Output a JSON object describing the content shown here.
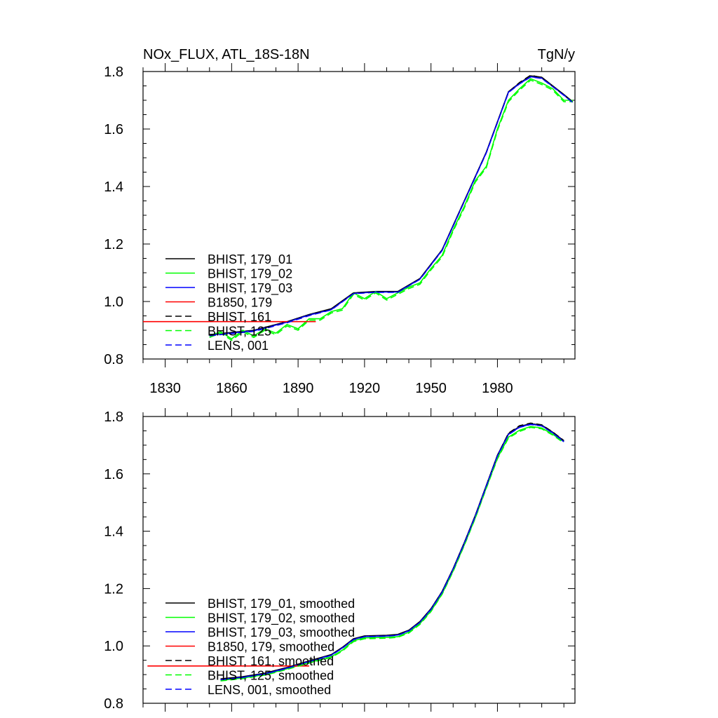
{
  "figure": {
    "title_left": "NOx_FLUX, ATL_18S-18N",
    "title_right": "TgN/y"
  },
  "chart_data": [
    {
      "type": "line",
      "title": "NOx_FLUX, ATL_18S-18N",
      "units": "TgN/y",
      "xlim": [
        1820,
        2015
      ],
      "ylim": [
        0.8,
        1.8
      ],
      "x_ticks": [
        1830,
        1860,
        1890,
        1920,
        1950,
        1980
      ],
      "x_tick_labels": [
        "1830",
        "1860",
        "1890",
        "1920",
        "1950",
        "1980"
      ],
      "y_ticks": [
        0.8,
        1.0,
        1.2,
        1.4,
        1.6,
        1.8
      ],
      "y_tick_labels": [
        "0.8",
        "1.0",
        "1.2",
        "1.4",
        "1.6",
        "1.8"
      ],
      "legend_position": "lower-left",
      "series": [
        {
          "name": "BHIST, 179_01",
          "color": "#000000",
          "dash": "solid",
          "x": [
            1850,
            1870,
            1885,
            1895,
            1905,
            1915,
            1925,
            1935,
            1945,
            1955,
            1965,
            1975,
            1985,
            1990,
            1995,
            2000,
            2005,
            2010,
            2014
          ],
          "y": [
            0.885,
            0.9,
            0.93,
            0.955,
            0.975,
            1.03,
            1.035,
            1.035,
            1.08,
            1.18,
            1.35,
            1.52,
            1.73,
            1.76,
            1.785,
            1.78,
            1.75,
            1.72,
            1.695
          ]
        },
        {
          "name": "BHIST, 179_02",
          "color": "#00ff00",
          "dash": "solid",
          "x": [
            1850,
            1855,
            1860,
            1865,
            1870,
            1875,
            1880,
            1885,
            1890,
            1895,
            1900,
            1905,
            1910,
            1915,
            1920,
            1925,
            1930,
            1935,
            1940,
            1945,
            1950,
            1955,
            1960,
            1965,
            1970,
            1975,
            1980,
            1985,
            1990,
            1995,
            2000,
            2005,
            2010,
            2014
          ],
          "y": [
            0.88,
            0.895,
            0.87,
            0.9,
            0.88,
            0.905,
            0.89,
            0.92,
            0.905,
            0.94,
            0.94,
            0.965,
            0.975,
            1.03,
            1.01,
            1.035,
            1.01,
            1.03,
            1.05,
            1.065,
            1.115,
            1.16,
            1.25,
            1.33,
            1.42,
            1.47,
            1.6,
            1.7,
            1.74,
            1.775,
            1.76,
            1.74,
            1.7,
            1.7
          ]
        },
        {
          "name": "BHIST, 179_03",
          "color": "#0000ff",
          "dash": "solid",
          "x": [
            1850,
            1870,
            1885,
            1895,
            1905,
            1915,
            1925,
            1935,
            1945,
            1955,
            1965,
            1975,
            1985,
            1990,
            1995,
            2000,
            2005,
            2010,
            2014
          ],
          "y": [
            0.883,
            0.898,
            0.928,
            0.953,
            0.972,
            1.028,
            1.033,
            1.033,
            1.078,
            1.178,
            1.348,
            1.518,
            1.728,
            1.758,
            1.782,
            1.777,
            1.748,
            1.718,
            1.693
          ]
        },
        {
          "name": "B1850, 179",
          "color": "#ff0000",
          "dash": "solid",
          "x": [
            1820,
            1898
          ],
          "y": [
            0.93,
            0.93
          ]
        },
        {
          "name": "BHIST, 161",
          "color": "#000000",
          "dash": "dashed",
          "x": [
            1850,
            1870,
            1885,
            1895,
            1905,
            1915,
            1925,
            1935,
            1945,
            1955,
            1965,
            1975,
            1985,
            1990,
            1995,
            2000,
            2005,
            2010,
            2014
          ],
          "y": [
            0.882,
            0.897,
            0.927,
            0.952,
            0.973,
            1.029,
            1.034,
            1.033,
            1.079,
            1.179,
            1.349,
            1.519,
            1.729,
            1.762,
            1.787,
            1.779,
            1.749,
            1.719,
            1.694
          ]
        },
        {
          "name": "BHIST, 125",
          "color": "#00ff00",
          "dash": "dashed",
          "x": [
            1850,
            1855,
            1860,
            1865,
            1870,
            1875,
            1880,
            1885,
            1890,
            1895,
            1900,
            1905,
            1910,
            1915,
            1920,
            1925,
            1930,
            1935,
            1940,
            1945,
            1950,
            1955,
            1960,
            1965,
            1970,
            1975,
            1980,
            1985,
            1990,
            1995,
            2000,
            2005,
            2010,
            2014
          ],
          "y": [
            0.875,
            0.89,
            0.865,
            0.895,
            0.875,
            0.9,
            0.885,
            0.915,
            0.9,
            0.935,
            0.935,
            0.96,
            0.97,
            1.025,
            1.005,
            1.03,
            1.005,
            1.025,
            1.045,
            1.06,
            1.11,
            1.155,
            1.245,
            1.325,
            1.415,
            1.465,
            1.595,
            1.695,
            1.735,
            1.77,
            1.755,
            1.735,
            1.695,
            1.695
          ]
        },
        {
          "name": "LENS, 001",
          "color": "#0000ff",
          "dash": "dashed",
          "x": [
            1850,
            1870,
            1885,
            1895,
            1905,
            1915,
            1925,
            1935,
            1945,
            1955,
            1965,
            1975,
            1985,
            1990,
            1995,
            2000,
            2005,
            2010,
            2014
          ],
          "y": [
            0.881,
            0.896,
            0.926,
            0.951,
            0.971,
            1.027,
            1.032,
            1.032,
            1.077,
            1.177,
            1.347,
            1.517,
            1.727,
            1.757,
            1.781,
            1.776,
            1.747,
            1.717,
            1.692
          ]
        }
      ]
    },
    {
      "type": "line",
      "xlim": [
        1820,
        2015
      ],
      "ylim": [
        0.8,
        1.8
      ],
      "x_ticks": [
        1830,
        1860,
        1890,
        1920,
        1950,
        1980
      ],
      "x_tick_labels": [],
      "y_ticks": [
        0.8,
        1.0,
        1.2,
        1.4,
        1.6,
        1.8
      ],
      "y_tick_labels": [
        "0.8",
        "1.0",
        "1.2",
        "1.4",
        "1.6",
        "1.8"
      ],
      "legend_position": "lower-left",
      "series": [
        {
          "name": "BHIST, 179_01, smoothed",
          "color": "#000000",
          "dash": "solid",
          "x": [
            1855,
            1865,
            1875,
            1885,
            1895,
            1905,
            1910,
            1915,
            1920,
            1930,
            1935,
            1940,
            1945,
            1950,
            1955,
            1960,
            1965,
            1970,
            1975,
            1980,
            1985,
            1990,
            1995,
            2000,
            2005,
            2010
          ],
          "y": [
            0.885,
            0.893,
            0.905,
            0.925,
            0.948,
            0.97,
            0.995,
            1.025,
            1.035,
            1.037,
            1.04,
            1.055,
            1.085,
            1.13,
            1.19,
            1.27,
            1.36,
            1.455,
            1.56,
            1.665,
            1.74,
            1.765,
            1.775,
            1.77,
            1.745,
            1.715
          ]
        },
        {
          "name": "BHIST, 179_02, smoothed",
          "color": "#00ff00",
          "dash": "solid",
          "x": [
            1855,
            1865,
            1875,
            1885,
            1895,
            1905,
            1910,
            1915,
            1920,
            1930,
            1935,
            1940,
            1945,
            1950,
            1955,
            1960,
            1965,
            1970,
            1975,
            1980,
            1985,
            1990,
            1995,
            2000,
            2005,
            2010
          ],
          "y": [
            0.88,
            0.888,
            0.9,
            0.92,
            0.942,
            0.962,
            0.985,
            1.018,
            1.028,
            1.03,
            1.032,
            1.048,
            1.078,
            1.122,
            1.182,
            1.262,
            1.352,
            1.447,
            1.552,
            1.655,
            1.728,
            1.752,
            1.765,
            1.76,
            1.738,
            1.712
          ]
        },
        {
          "name": "BHIST, 179_03, smoothed",
          "color": "#0000ff",
          "dash": "solid",
          "x": [
            1855,
            1865,
            1875,
            1885,
            1895,
            1905,
            1910,
            1915,
            1920,
            1930,
            1935,
            1940,
            1945,
            1950,
            1955,
            1960,
            1965,
            1970,
            1975,
            1980,
            1985,
            1990,
            1995,
            2000,
            2005,
            2010
          ],
          "y": [
            0.883,
            0.891,
            0.903,
            0.923,
            0.946,
            0.968,
            0.993,
            1.023,
            1.033,
            1.035,
            1.038,
            1.053,
            1.083,
            1.128,
            1.188,
            1.268,
            1.358,
            1.453,
            1.558,
            1.663,
            1.738,
            1.763,
            1.773,
            1.768,
            1.743,
            1.713
          ]
        },
        {
          "name": "B1850, 179, smoothed",
          "color": "#ff0000",
          "dash": "solid",
          "x": [
            1822,
            1895
          ],
          "y": [
            0.93,
            0.93
          ]
        },
        {
          "name": "BHIST, 161, smoothed",
          "color": "#000000",
          "dash": "dashed",
          "x": [
            1855,
            1865,
            1875,
            1885,
            1895,
            1905,
            1910,
            1915,
            1920,
            1930,
            1935,
            1940,
            1945,
            1950,
            1955,
            1960,
            1965,
            1970,
            1975,
            1980,
            1985,
            1990,
            1995,
            2000,
            2005,
            2010
          ],
          "y": [
            0.884,
            0.892,
            0.904,
            0.924,
            0.947,
            0.969,
            0.994,
            1.024,
            1.034,
            1.036,
            1.039,
            1.054,
            1.084,
            1.129,
            1.189,
            1.269,
            1.359,
            1.454,
            1.559,
            1.664,
            1.742,
            1.768,
            1.777,
            1.771,
            1.746,
            1.716
          ]
        },
        {
          "name": "BHIST, 125, smoothed",
          "color": "#00ff00",
          "dash": "dashed",
          "x": [
            1855,
            1865,
            1875,
            1885,
            1895,
            1905,
            1910,
            1915,
            1920,
            1930,
            1935,
            1940,
            1945,
            1950,
            1955,
            1960,
            1965,
            1970,
            1975,
            1980,
            1985,
            1990,
            1995,
            2000,
            2005,
            2010
          ],
          "y": [
            0.878,
            0.886,
            0.898,
            0.918,
            0.94,
            0.96,
            0.982,
            1.015,
            1.025,
            1.027,
            1.03,
            1.045,
            1.075,
            1.12,
            1.18,
            1.26,
            1.35,
            1.445,
            1.55,
            1.652,
            1.725,
            1.748,
            1.762,
            1.757,
            1.735,
            1.708
          ]
        },
        {
          "name": "LENS, 001, smoothed",
          "color": "#0000ff",
          "dash": "dashed",
          "x": [
            1855,
            1865,
            1875,
            1885,
            1895,
            1905,
            1910,
            1915,
            1920,
            1930,
            1935,
            1940,
            1945,
            1950,
            1955,
            1960,
            1965,
            1970,
            1975,
            1980,
            1985,
            1990,
            1995,
            2000,
            2005,
            2010
          ],
          "y": [
            0.882,
            0.89,
            0.902,
            0.922,
            0.945,
            0.967,
            0.992,
            1.022,
            1.032,
            1.034,
            1.037,
            1.052,
            1.082,
            1.127,
            1.187,
            1.267,
            1.357,
            1.452,
            1.557,
            1.662,
            1.737,
            1.762,
            1.772,
            1.767,
            1.742,
            1.712
          ]
        }
      ]
    }
  ]
}
